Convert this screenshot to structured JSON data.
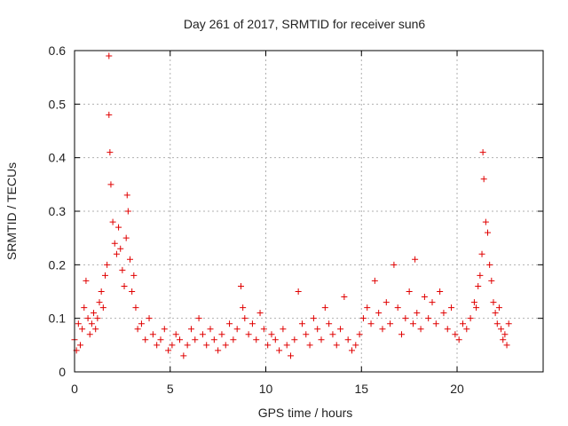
{
  "chart_data": {
    "type": "scatter",
    "title": "Day 261 of 2017, SRMTID for receiver sun6",
    "xlabel": "GPS time / hours",
    "ylabel": "SRMTID / TECUs",
    "xlim": [
      0,
      24.5
    ],
    "ylim": [
      0,
      0.6
    ],
    "xticks": [
      0,
      5,
      10,
      15,
      20
    ],
    "xtick_labels": [
      "0",
      "5",
      "10",
      "15",
      "20"
    ],
    "yticks": [
      0,
      0.1,
      0.2,
      0.3,
      0.4,
      0.5,
      0.6
    ],
    "ytick_labels": [
      "0",
      "0.1",
      "0.2",
      "0.3",
      "0.4",
      "0.5",
      "0.6"
    ],
    "grid": true,
    "marker": "+",
    "color": "#e00000",
    "series": [
      {
        "name": "sun6",
        "x": [
          0.0,
          0.1,
          0.2,
          0.3,
          0.4,
          0.5,
          0.6,
          0.7,
          0.8,
          0.9,
          1.0,
          1.1,
          1.2,
          1.3,
          1.4,
          1.5,
          1.6,
          1.7,
          1.8,
          1.8,
          1.85,
          1.9,
          2.0,
          2.1,
          2.2,
          2.3,
          2.4,
          2.5,
          2.6,
          2.7,
          2.75,
          2.8,
          2.9,
          3.0,
          3.1,
          3.2,
          3.3,
          3.5,
          3.7,
          3.9,
          4.1,
          4.3,
          4.5,
          4.7,
          4.9,
          5.1,
          5.3,
          5.5,
          5.7,
          5.9,
          6.1,
          6.3,
          6.5,
          6.7,
          6.9,
          7.1,
          7.3,
          7.5,
          7.7,
          7.9,
          8.1,
          8.3,
          8.5,
          8.7,
          8.8,
          8.9,
          9.1,
          9.3,
          9.5,
          9.7,
          9.9,
          10.1,
          10.3,
          10.5,
          10.7,
          10.9,
          11.1,
          11.3,
          11.5,
          11.7,
          11.9,
          12.1,
          12.3,
          12.5,
          12.7,
          12.9,
          13.1,
          13.3,
          13.5,
          13.7,
          13.9,
          14.1,
          14.3,
          14.5,
          14.7,
          14.9,
          15.1,
          15.3,
          15.5,
          15.7,
          15.9,
          16.1,
          16.3,
          16.5,
          16.7,
          16.9,
          17.1,
          17.3,
          17.5,
          17.7,
          17.8,
          17.9,
          18.1,
          18.3,
          18.5,
          18.7,
          18.9,
          19.1,
          19.3,
          19.5,
          19.7,
          19.9,
          20.1,
          20.3,
          20.5,
          20.7,
          20.9,
          21.0,
          21.1,
          21.2,
          21.3,
          21.35,
          21.4,
          21.5,
          21.6,
          21.7,
          21.8,
          21.9,
          22.0,
          22.1,
          22.2,
          22.3,
          22.4,
          22.5,
          22.6,
          22.7
        ],
        "y": [
          0.06,
          0.04,
          0.09,
          0.05,
          0.08,
          0.12,
          0.17,
          0.1,
          0.07,
          0.09,
          0.11,
          0.08,
          0.1,
          0.13,
          0.15,
          0.12,
          0.18,
          0.2,
          0.59,
          0.48,
          0.41,
          0.35,
          0.28,
          0.24,
          0.22,
          0.27,
          0.23,
          0.19,
          0.16,
          0.25,
          0.33,
          0.3,
          0.21,
          0.15,
          0.18,
          0.12,
          0.08,
          0.09,
          0.06,
          0.1,
          0.07,
          0.05,
          0.06,
          0.08,
          0.04,
          0.05,
          0.07,
          0.06,
          0.03,
          0.05,
          0.08,
          0.06,
          0.1,
          0.07,
          0.05,
          0.08,
          0.06,
          0.04,
          0.07,
          0.05,
          0.09,
          0.06,
          0.08,
          0.16,
          0.12,
          0.1,
          0.07,
          0.09,
          0.06,
          0.11,
          0.08,
          0.05,
          0.07,
          0.06,
          0.04,
          0.08,
          0.05,
          0.03,
          0.06,
          0.15,
          0.09,
          0.07,
          0.05,
          0.1,
          0.08,
          0.06,
          0.12,
          0.09,
          0.07,
          0.05,
          0.08,
          0.14,
          0.06,
          0.04,
          0.05,
          0.07,
          0.1,
          0.12,
          0.09,
          0.17,
          0.11,
          0.08,
          0.13,
          0.09,
          0.2,
          0.12,
          0.07,
          0.1,
          0.15,
          0.09,
          0.21,
          0.11,
          0.08,
          0.14,
          0.1,
          0.13,
          0.09,
          0.15,
          0.11,
          0.08,
          0.12,
          0.07,
          0.06,
          0.09,
          0.08,
          0.1,
          0.13,
          0.12,
          0.16,
          0.18,
          0.22,
          0.41,
          0.36,
          0.28,
          0.26,
          0.2,
          0.17,
          0.13,
          0.11,
          0.09,
          0.12,
          0.08,
          0.06,
          0.07,
          0.05,
          0.09
        ]
      }
    ]
  }
}
